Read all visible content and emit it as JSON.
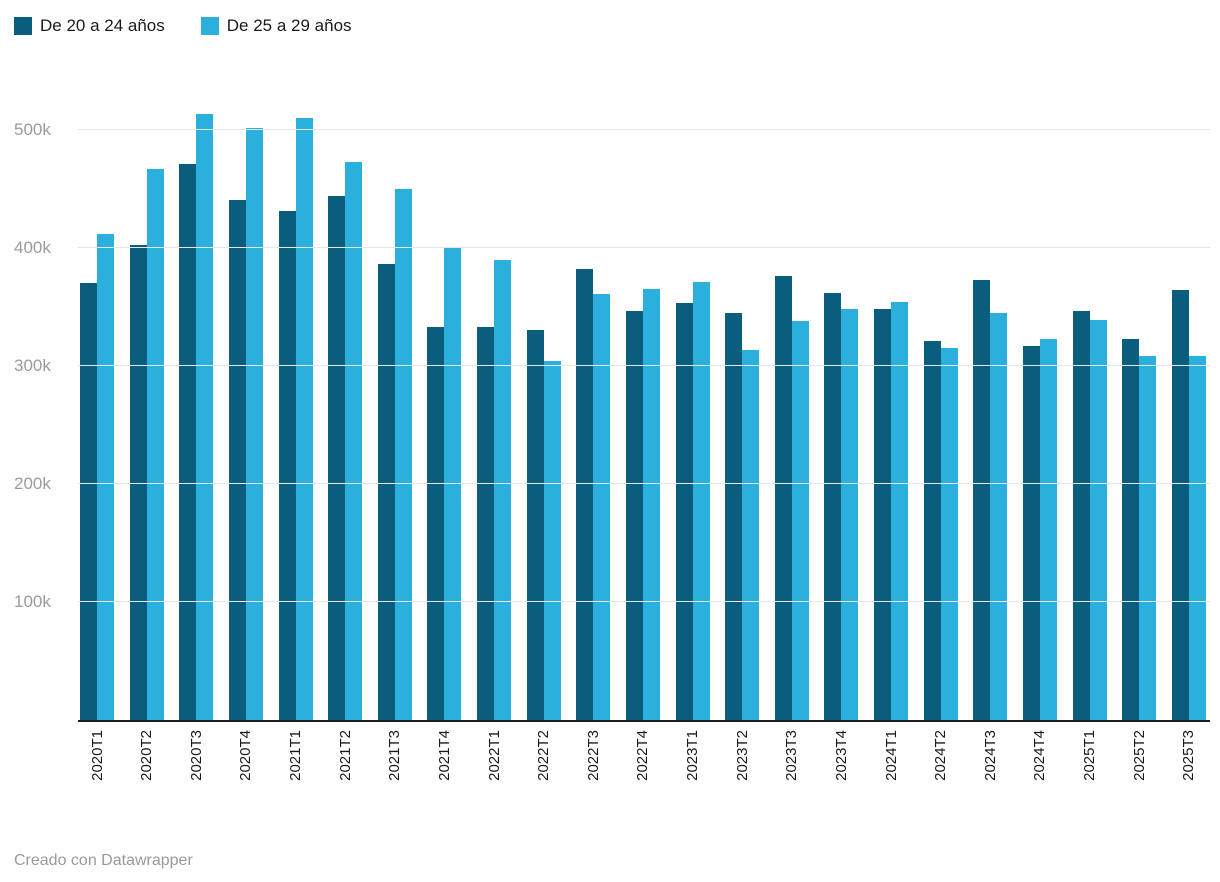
{
  "chart_data": {
    "type": "bar",
    "title": "",
    "categories": [
      "2020T1",
      "2020T2",
      "2020T3",
      "2020T4",
      "2021T1",
      "2021T2",
      "2021T3",
      "2021T4",
      "2022T1",
      "2022T2",
      "2022T3",
      "2022T4",
      "2023T1",
      "2023T2",
      "2023T3",
      "2023T4",
      "2024T1",
      "2024T2",
      "2024T3",
      "2024T4",
      "2025T1",
      "2025T2",
      "2025T3"
    ],
    "series": [
      {
        "name": "De 20 a 24 años",
        "color": "#0b5d7e",
        "values": [
          370,
          402,
          471,
          440,
          431,
          444,
          386,
          333,
          333,
          330,
          382,
          346,
          353,
          345,
          376,
          362,
          348,
          321,
          373,
          317,
          346,
          323,
          364
        ]
      },
      {
        "name": "De 25 a 29 años",
        "color": "#2bafdd",
        "values": [
          412,
          467,
          513,
          501,
          510,
          473,
          450,
          400,
          390,
          304,
          361,
          365,
          371,
          313,
          338,
          348,
          354,
          315,
          345,
          323,
          339,
          308,
          308
        ]
      }
    ],
    "value_unit": "k",
    "yticks": [
      100,
      200,
      300,
      400,
      500
    ],
    "ytick_labels": [
      "100k",
      "200k",
      "300k",
      "400k",
      "500k"
    ],
    "ylim": [
      0,
      520
    ],
    "grid": "horizontal",
    "legend_position": "top-left",
    "xlabel": "",
    "ylabel": ""
  },
  "footer": {
    "credit": "Creado con Datawrapper"
  }
}
